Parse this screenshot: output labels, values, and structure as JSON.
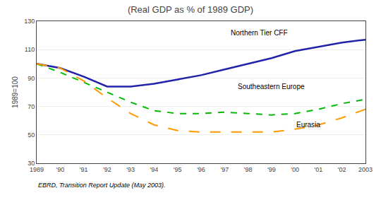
{
  "chart_data": {
    "type": "line",
    "title": "(Real GDP as % of 1989 GDP)",
    "ylabel": "1989=100",
    "source": "EBRD, Transition Report Update (May 2003).",
    "x": [
      1989,
      1990,
      1991,
      1992,
      1993,
      1994,
      1995,
      1996,
      1997,
      1998,
      1999,
      2000,
      2001,
      2002,
      2003
    ],
    "series": [
      {
        "name": "Northern Tier CFF",
        "color": "#2222aa",
        "line_style": "solid",
        "values": [
          100,
          97,
          91,
          84,
          84,
          86,
          89,
          92,
          96,
          100,
          104,
          109,
          112,
          115,
          117
        ]
      },
      {
        "name": "Southeastern Europe",
        "color": "#00bb00",
        "line_style": "dash",
        "values": [
          100,
          94,
          87,
          80,
          73,
          67,
          65,
          65,
          66,
          65,
          64,
          65,
          68,
          72,
          75
        ]
      },
      {
        "name": "Eurasia",
        "color": "#ff9900",
        "line_style": "longdash",
        "values": [
          100,
          97,
          88,
          76,
          65,
          57,
          53,
          52,
          52,
          52,
          52,
          54,
          57,
          62,
          68
        ]
      }
    ],
    "annotations": [
      {
        "text": "Northern Tier CFF",
        "x": 1997.2,
        "y": 122
      },
      {
        "text": "Southeastern Europe",
        "x": 1997.5,
        "y": 84
      },
      {
        "text": "Eurasia",
        "x": 2000.0,
        "y": 57
      }
    ],
    "xlim": [
      1989,
      2003
    ],
    "xticks": [
      1989,
      {
        "value": 1990,
        "label": "'90"
      },
      {
        "value": 1991,
        "label": "'91"
      },
      {
        "value": 1992,
        "label": "'92"
      },
      {
        "value": 1993,
        "label": "'93"
      },
      {
        "value": 1994,
        "label": "'94"
      },
      {
        "value": 1995,
        "label": "'95"
      },
      {
        "value": 1996,
        "label": "'96"
      },
      {
        "value": 1997,
        "label": "'97"
      },
      {
        "value": 1998,
        "label": "'98"
      },
      {
        "value": 1999,
        "label": "'99"
      },
      {
        "value": 2000,
        "label": "'00"
      },
      {
        "value": 2001,
        "label": "'01"
      },
      {
        "value": 2002,
        "label": "'02"
      },
      2003
    ],
    "ylim": [
      30,
      130
    ],
    "yticks": [
      30,
      50,
      70,
      90,
      110,
      130
    ],
    "grid": "y"
  }
}
